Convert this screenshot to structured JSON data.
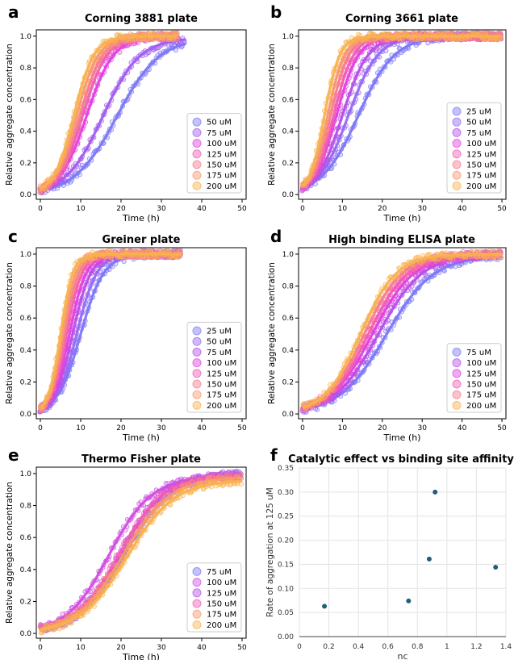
{
  "figure": {
    "panels": [
      "a",
      "b",
      "c",
      "d",
      "e",
      "f"
    ]
  },
  "chart_data": [
    {
      "panel": "a",
      "type": "scatter",
      "title": "Corning 3881 plate",
      "xlabel": "Time (h)",
      "ylabel": "Relative aggregate concentration",
      "xlim": [
        -1,
        51
      ],
      "ylim": [
        -0.03,
        1.04
      ],
      "xticks": [
        0,
        10,
        20,
        30,
        40,
        50
      ],
      "yticks": [
        0.0,
        0.2,
        0.4,
        0.6,
        0.8,
        1.0
      ],
      "legend_position": "lower-right",
      "tmax": 50,
      "series": [
        {
          "name": "50 uM",
          "color": "#7b77f7",
          "t_half": 19.0,
          "slope": 0.19,
          "tmax": 36,
          "plateau": 0.99
        },
        {
          "name": "75 uM",
          "color": "#a05cf0",
          "t_half": 15.5,
          "slope": 0.22,
          "tmax": 36,
          "plateau": 0.99
        },
        {
          "name": "100 uM",
          "color": "#e03fe0",
          "t_half": 11.5,
          "slope": 0.3,
          "tmax": 34,
          "plateau": 1.0
        },
        {
          "name": "125 uM",
          "color": "#f05ab8",
          "t_half": 10.5,
          "slope": 0.33,
          "tmax": 34,
          "plateau": 1.0
        },
        {
          "name": "150 uM",
          "color": "#f57a8e",
          "t_half": 9.8,
          "slope": 0.35,
          "tmax": 34,
          "plateau": 1.0
        },
        {
          "name": "175 uM",
          "color": "#f8976b",
          "t_half": 9.0,
          "slope": 0.37,
          "tmax": 34,
          "plateau": 1.0
        },
        {
          "name": "200 uM",
          "color": "#f9b14e",
          "t_half": 8.3,
          "slope": 0.4,
          "tmax": 34,
          "plateau": 1.0
        }
      ]
    },
    {
      "panel": "b",
      "type": "scatter",
      "title": "Corning 3661 plate",
      "xlabel": "Time (h)",
      "ylabel": "Relative aggregate concentration",
      "xlim": [
        -1,
        51
      ],
      "ylim": [
        -0.03,
        1.04
      ],
      "xticks": [
        0,
        10,
        20,
        30,
        40,
        50
      ],
      "yticks": [
        0.0,
        0.2,
        0.4,
        0.6,
        0.8,
        1.0
      ],
      "legend_position": "lower-right",
      "series": [
        {
          "name": "25 uM",
          "color": "#7b77f7",
          "t_half": 14.0,
          "slope": 0.22,
          "tmax": 50,
          "plateau": 1.0
        },
        {
          "name": "50 uM",
          "color": "#9569f3",
          "t_half": 11.5,
          "slope": 0.27,
          "tmax": 50,
          "plateau": 1.0
        },
        {
          "name": "75 uM",
          "color": "#b54ee8",
          "t_half": 10.0,
          "slope": 0.31,
          "tmax": 50,
          "plateau": 1.0
        },
        {
          "name": "100 uM",
          "color": "#e03fe0",
          "t_half": 8.5,
          "slope": 0.36,
          "tmax": 50,
          "plateau": 1.0
        },
        {
          "name": "125 uM",
          "color": "#f05ab8",
          "t_half": 7.8,
          "slope": 0.4,
          "tmax": 50,
          "plateau": 1.0
        },
        {
          "name": "150 uM",
          "color": "#f57a8e",
          "t_half": 7.0,
          "slope": 0.43,
          "tmax": 50,
          "plateau": 1.0
        },
        {
          "name": "175 uM",
          "color": "#f8976b",
          "t_half": 6.3,
          "slope": 0.47,
          "tmax": 50,
          "plateau": 1.0
        },
        {
          "name": "200 uM",
          "color": "#f9b14e",
          "t_half": 5.5,
          "slope": 0.52,
          "tmax": 50,
          "plateau": 1.0
        }
      ]
    },
    {
      "panel": "c",
      "type": "scatter",
      "title": "Greiner plate",
      "xlabel": "Time (h)",
      "ylabel": "Relative aggregate concentration",
      "xlim": [
        -1,
        51
      ],
      "ylim": [
        -0.03,
        1.04
      ],
      "xticks": [
        0,
        10,
        20,
        30,
        40,
        50
      ],
      "yticks": [
        0.0,
        0.2,
        0.4,
        0.6,
        0.8,
        1.0
      ],
      "legend_position": "lower-right",
      "series": [
        {
          "name": "25 uM",
          "color": "#7b77f7",
          "t_half": 10.0,
          "slope": 0.35,
          "tmax": 35,
          "plateau": 1.0
        },
        {
          "name": "50 uM",
          "color": "#9569f3",
          "t_half": 9.0,
          "slope": 0.4,
          "tmax": 35,
          "plateau": 1.0
        },
        {
          "name": "75 uM",
          "color": "#b54ee8",
          "t_half": 8.0,
          "slope": 0.44,
          "tmax": 35,
          "plateau": 1.0
        },
        {
          "name": "100 uM",
          "color": "#e03fe0",
          "t_half": 7.2,
          "slope": 0.48,
          "tmax": 35,
          "plateau": 1.0
        },
        {
          "name": "125 uM",
          "color": "#f05ab8",
          "t_half": 6.5,
          "slope": 0.52,
          "tmax": 35,
          "plateau": 1.0
        },
        {
          "name": "150 uM",
          "color": "#f57a8e",
          "t_half": 6.0,
          "slope": 0.56,
          "tmax": 35,
          "plateau": 1.0
        },
        {
          "name": "175 uM",
          "color": "#f8976b",
          "t_half": 5.5,
          "slope": 0.6,
          "tmax": 35,
          "plateau": 1.0
        },
        {
          "name": "200 uM",
          "color": "#f9b14e",
          "t_half": 5.0,
          "slope": 0.65,
          "tmax": 35,
          "plateau": 1.0
        }
      ]
    },
    {
      "panel": "d",
      "type": "scatter",
      "title": "High binding ELISA plate",
      "xlabel": "Time (h)",
      "ylabel": "Relative aggregate concentration",
      "xlim": [
        -1,
        51
      ],
      "ylim": [
        -0.03,
        1.04
      ],
      "xticks": [
        0,
        10,
        20,
        30,
        40,
        50
      ],
      "yticks": [
        0.0,
        0.2,
        0.4,
        0.6,
        0.8,
        1.0
      ],
      "legend_position": "lower-right",
      "series": [
        {
          "name": "75 uM",
          "color": "#7b77f7",
          "t_half": 21.0,
          "slope": 0.17,
          "tmax": 50,
          "plateau": 0.99
        },
        {
          "name": "100 uM",
          "color": "#b54ee8",
          "t_half": 19.0,
          "slope": 0.18,
          "tmax": 50,
          "plateau": 1.0
        },
        {
          "name": "125 uM",
          "color": "#e03fe0",
          "t_half": 17.5,
          "slope": 0.19,
          "tmax": 50,
          "plateau": 1.0
        },
        {
          "name": "150 uM",
          "color": "#f05ab8",
          "t_half": 16.5,
          "slope": 0.2,
          "tmax": 50,
          "plateau": 1.0
        },
        {
          "name": "175 uM",
          "color": "#f57a8e",
          "t_half": 15.5,
          "slope": 0.21,
          "tmax": 50,
          "plateau": 1.0
        },
        {
          "name": "200 uM",
          "color": "#f9b14e",
          "t_half": 14.5,
          "slope": 0.22,
          "tmax": 50,
          "plateau": 1.0
        }
      ]
    },
    {
      "panel": "e",
      "type": "scatter",
      "title": "Thermo Fisher plate",
      "xlabel": "Time (h)",
      "ylabel": "Relative aggregate concentration",
      "xlim": [
        -1,
        51
      ],
      "ylim": [
        -0.03,
        1.04
      ],
      "xticks": [
        0,
        10,
        20,
        30,
        40,
        50
      ],
      "yticks": [
        0.0,
        0.2,
        0.4,
        0.6,
        0.8,
        1.0
      ],
      "legend_position": "lower-right",
      "series": [
        {
          "name": "75 uM",
          "color": "#7b77f7",
          "t_half": 21.0,
          "slope": 0.17,
          "tmax": 50,
          "plateau": 1.0
        },
        {
          "name": "100 uM",
          "color": "#d04ee0",
          "t_half": 17.0,
          "slope": 0.19,
          "tmax": 50,
          "plateau": 0.98
        },
        {
          "name": "125 uM",
          "color": "#b54ee8",
          "t_half": 20.0,
          "slope": 0.18,
          "tmax": 50,
          "plateau": 1.0
        },
        {
          "name": "150 uM",
          "color": "#f05ab8",
          "t_half": 19.5,
          "slope": 0.18,
          "tmax": 50,
          "plateau": 0.99
        },
        {
          "name": "175 uM",
          "color": "#f8976b",
          "t_half": 20.5,
          "slope": 0.17,
          "tmax": 50,
          "plateau": 0.98
        },
        {
          "name": "200 uM",
          "color": "#f9b14e",
          "t_half": 21.5,
          "slope": 0.17,
          "tmax": 50,
          "plateau": 0.96
        }
      ]
    },
    {
      "panel": "f",
      "type": "scatter",
      "title": "Catalytic effect vs binding site affinity",
      "xlabel": "nc",
      "ylabel": "Rate of aggregation at 125 uM",
      "xlim": [
        0,
        1.4
      ],
      "ylim": [
        0,
        0.35
      ],
      "xticks": [
        0,
        0.2,
        0.4,
        0.6,
        0.8,
        1,
        1.2,
        1.4
      ],
      "xtick_labels": [
        "0",
        "0.2",
        "0.4",
        "0.6",
        "0.8",
        "1",
        "1.2",
        "1.4"
      ],
      "yticks": [
        0,
        0.05,
        0.1,
        0.15,
        0.2,
        0.25,
        0.3,
        0.35
      ],
      "ytick_labels": [
        "0.00",
        "0.05",
        "0.10",
        "0.15",
        "0.20",
        "0.25",
        "0.30",
        "0.35"
      ],
      "grid": true,
      "point_color": "#1f5f7a",
      "points": [
        {
          "x": 0.17,
          "y": 0.063
        },
        {
          "x": 0.74,
          "y": 0.074
        },
        {
          "x": 0.88,
          "y": 0.161
        },
        {
          "x": 0.92,
          "y": 0.3
        },
        {
          "x": 1.33,
          "y": 0.144
        }
      ]
    }
  ]
}
